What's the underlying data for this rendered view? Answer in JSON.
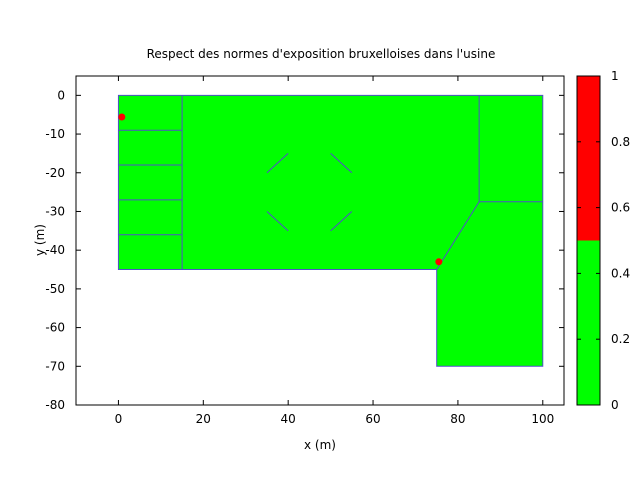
{
  "chart_data": {
    "type": "heatmap",
    "title": "Respect des normes d'exposition bruxelloises dans l'usine",
    "xlabel": "x (m)",
    "ylabel": "y (m)",
    "xlim": [
      -10,
      105
    ],
    "ylim": [
      -80,
      5
    ],
    "x_ticks": [
      0,
      20,
      40,
      60,
      80,
      100
    ],
    "x_tick_labels": [
      "0",
      "20",
      "40",
      "60",
      "80",
      "100"
    ],
    "y_ticks": [
      0,
      -10,
      -20,
      -30,
      -40,
      -50,
      -60,
      -70,
      -80
    ],
    "y_tick_labels": [
      "0",
      "-10",
      "-20",
      "-30",
      "-40",
      "-50",
      "-60",
      "-70",
      "-80"
    ],
    "grid": false,
    "colorscale": {
      "range": [
        0,
        1
      ],
      "threshold": 0.5,
      "below_color": "#00ff00",
      "above_color": "#ff0000",
      "ticks": [
        0,
        0.2,
        0.4,
        0.6,
        0.8,
        1
      ],
      "tick_labels": [
        "0",
        "0.2",
        "0.4",
        "0.6",
        "0.8",
        "1"
      ],
      "placement": "right"
    },
    "floor_outline": [
      [
        0,
        0
      ],
      [
        100,
        0
      ],
      [
        100,
        -70
      ],
      [
        75,
        -70
      ],
      [
        75,
        -45
      ],
      [
        0,
        -45
      ]
    ],
    "floor_value": 0,
    "wall_color": "#5050c8",
    "walls": [
      [
        [
          15,
          0
        ],
        [
          15,
          -45
        ]
      ],
      [
        [
          0,
          -9
        ],
        [
          15,
          -9
        ]
      ],
      [
        [
          0,
          -18
        ],
        [
          15,
          -18
        ]
      ],
      [
        [
          0,
          -27
        ],
        [
          15,
          -27
        ]
      ],
      [
        [
          0,
          -36
        ],
        [
          15,
          -36
        ]
      ],
      [
        [
          85,
          0
        ],
        [
          85,
          -27.5
        ]
      ],
      [
        [
          85,
          -27.5
        ],
        [
          100,
          -27.5
        ]
      ],
      [
        [
          85,
          -27.5
        ],
        [
          75,
          -45
        ]
      ],
      [
        [
          35,
          -20
        ],
        [
          40,
          -15
        ]
      ],
      [
        [
          50,
          -15
        ],
        [
          55,
          -20
        ]
      ],
      [
        [
          35,
          -30
        ],
        [
          40,
          -35
        ]
      ],
      [
        [
          50,
          -35
        ],
        [
          55,
          -30
        ]
      ]
    ],
    "hot_spots": [
      {
        "x": 0.8,
        "y": -5.6,
        "value": 1
      },
      {
        "x": 75.5,
        "y": -43,
        "value": 1
      }
    ]
  }
}
